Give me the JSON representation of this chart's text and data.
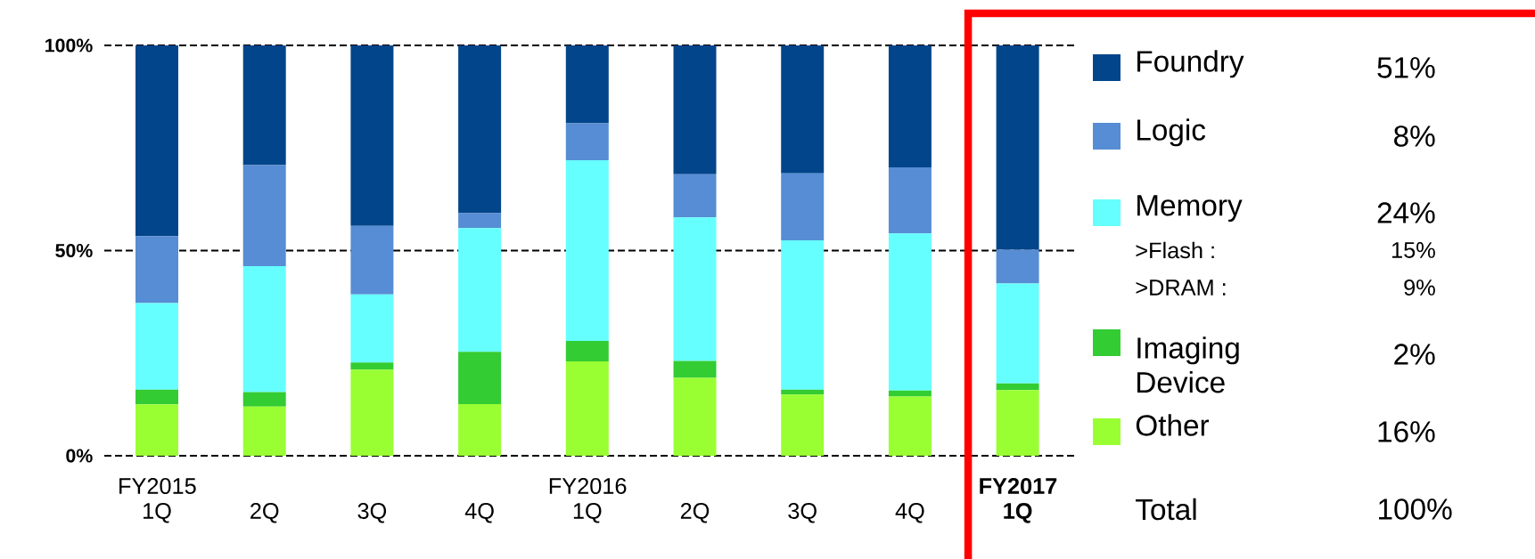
{
  "chart_data": {
    "type": "bar",
    "stacked": true,
    "categories": [
      "FY2015 1Q",
      "2Q",
      "3Q",
      "4Q",
      "FY2016 1Q",
      "2Q",
      "3Q",
      "4Q",
      "FY2017 1Q"
    ],
    "series": [
      {
        "name": "Other",
        "color": "#99ff33",
        "values": [
          12.5,
          12,
          21,
          12.6,
          23,
          19,
          14.9,
          14.4,
          16
        ]
      },
      {
        "name": "Imaging Device",
        "color": "#33cc33",
        "values": [
          3.6,
          3.5,
          1.7,
          12.7,
          5,
          4.1,
          1.2,
          1.5,
          1.6
        ]
      },
      {
        "name": "Memory",
        "color": "#66ffff",
        "values": [
          21.1,
          30.7,
          16.6,
          30.2,
          44,
          35,
          36.4,
          38.3,
          24.4
        ]
      },
      {
        "name": "Logic",
        "color": "#568dd4",
        "values": [
          16.3,
          24.6,
          16.7,
          3.6,
          9,
          10.5,
          16.3,
          16.1,
          8.2
        ]
      },
      {
        "name": "Foundry",
        "color": "#02458a",
        "values": [
          46.5,
          29.2,
          44,
          40.9,
          19,
          31.4,
          31.2,
          29.7,
          49.8
        ]
      }
    ],
    "ylim": [
      0,
      100
    ],
    "yticks": [
      {
        "value": 0,
        "label": "0%"
      },
      {
        "value": 50,
        "label": "50%"
      },
      {
        "value": 100,
        "label": "100%"
      }
    ],
    "grid": "y",
    "legend": "right",
    "annotations": [
      "51%",
      "8%",
      "24%",
      ">Flash  :",
      "15%",
      ">DRAM :",
      "9%",
      "2%",
      "16%",
      "Total",
      "100%"
    ]
  }
}
